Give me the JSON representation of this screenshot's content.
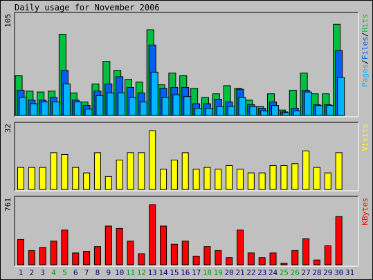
{
  "chart_data": [
    {
      "type": "bar",
      "title": "Daily usage for November 2006",
      "panel": "top",
      "y_max_label": "105",
      "ylim": [
        0,
        105
      ],
      "legend": [
        {
          "text": "Pages",
          "color": "#00b4ff"
        },
        {
          "text": "/",
          "color": "#000000"
        },
        {
          "text": "Files",
          "color": "#0060f0"
        },
        {
          "text": "/",
          "color": "#000000"
        },
        {
          "text": "Hits",
          "color": "#00c040"
        }
      ],
      "legend_placement": "right",
      "categories": [
        "1",
        "2",
        "3",
        "4",
        "5",
        "6",
        "7",
        "8",
        "9",
        "10",
        "11",
        "12",
        "13",
        "14",
        "15",
        "16",
        "17",
        "18",
        "19",
        "20",
        "21",
        "22",
        "23",
        "24",
        "25",
        "26",
        "27",
        "28",
        "29",
        "30",
        "31"
      ],
      "series": [
        {
          "name": "Hits",
          "color": "#00c040",
          "values": [
            44,
            27,
            26,
            27,
            90,
            25,
            15,
            35,
            60,
            50,
            40,
            37,
            95,
            34,
            47,
            44,
            30,
            20,
            24,
            33,
            30,
            17,
            10,
            24,
            6,
            28,
            47,
            24,
            24,
            101,
            0
          ]
        },
        {
          "name": "Files",
          "color": "#0060f0",
          "values": [
            28,
            17,
            17,
            20,
            50,
            17,
            11,
            27,
            35,
            43,
            31,
            25,
            78,
            30,
            31,
            31,
            13,
            13,
            18,
            15,
            29,
            12,
            8,
            15,
            4,
            8,
            28,
            12,
            12,
            72,
            0
          ]
        },
        {
          "name": "Pages",
          "color": "#00b4ff",
          "values": [
            20,
            13,
            15,
            15,
            35,
            15,
            7,
            22,
            25,
            25,
            20,
            15,
            48,
            20,
            23,
            21,
            8,
            8,
            10,
            10,
            20,
            10,
            5,
            11,
            3,
            5,
            26,
            11,
            11,
            42,
            0
          ]
        }
      ]
    },
    {
      "type": "bar",
      "panel": "middle",
      "y_max_label": "32",
      "ylim": [
        0,
        32
      ],
      "legend": [
        {
          "text": "Visits",
          "color": "#ffff00"
        }
      ],
      "legend_placement": "right",
      "categories": [
        "1",
        "2",
        "3",
        "4",
        "5",
        "6",
        "7",
        "8",
        "9",
        "10",
        "11",
        "12",
        "13",
        "14",
        "15",
        "16",
        "17",
        "18",
        "19",
        "20",
        "21",
        "22",
        "23",
        "24",
        "25",
        "26",
        "27",
        "28",
        "29",
        "30",
        "31"
      ],
      "series": [
        {
          "name": "Visits",
          "color": "#ffff00",
          "values": [
            12,
            12,
            12,
            20,
            19,
            12,
            9,
            20,
            7,
            16,
            20,
            20,
            32,
            11,
            16,
            20,
            11,
            12,
            11,
            13,
            11,
            9,
            9,
            13,
            13,
            14,
            21,
            12,
            9,
            20,
            0
          ]
        }
      ]
    },
    {
      "type": "bar",
      "panel": "bottom",
      "y_max_label": "761",
      "ylim": [
        0,
        761
      ],
      "legend": [
        {
          "text": "KBytes",
          "color": "#ff0000"
        }
      ],
      "legend_placement": "right",
      "categories": [
        "1",
        "2",
        "3",
        "4",
        "5",
        "6",
        "7",
        "8",
        "9",
        "10",
        "11",
        "12",
        "13",
        "14",
        "15",
        "16",
        "17",
        "18",
        "19",
        "20",
        "21",
        "22",
        "23",
        "24",
        "25",
        "26",
        "27",
        "28",
        "29",
        "30",
        "31"
      ],
      "series": [
        {
          "name": "KBytes",
          "color": "#ff0000",
          "values": [
            320,
            180,
            220,
            300,
            440,
            150,
            170,
            230,
            490,
            460,
            300,
            140,
            761,
            490,
            260,
            300,
            110,
            230,
            180,
            90,
            440,
            150,
            90,
            150,
            20,
            180,
            330,
            60,
            240,
            610,
            0
          ]
        }
      ]
    }
  ],
  "x_axis": {
    "labels": [
      "1",
      "2",
      "3",
      "4",
      "5",
      "6",
      "7",
      "8",
      "9",
      "10",
      "11",
      "12",
      "13",
      "14",
      "15",
      "16",
      "17",
      "18",
      "19",
      "20",
      "21",
      "22",
      "23",
      "24",
      "25",
      "26",
      "27",
      "28",
      "29",
      "30",
      "31"
    ],
    "weekend_days": [
      "4",
      "5",
      "11",
      "12",
      "18",
      "19",
      "25",
      "26"
    ],
    "weekday_color": "#000080",
    "weekend_color": "#00a000"
  }
}
